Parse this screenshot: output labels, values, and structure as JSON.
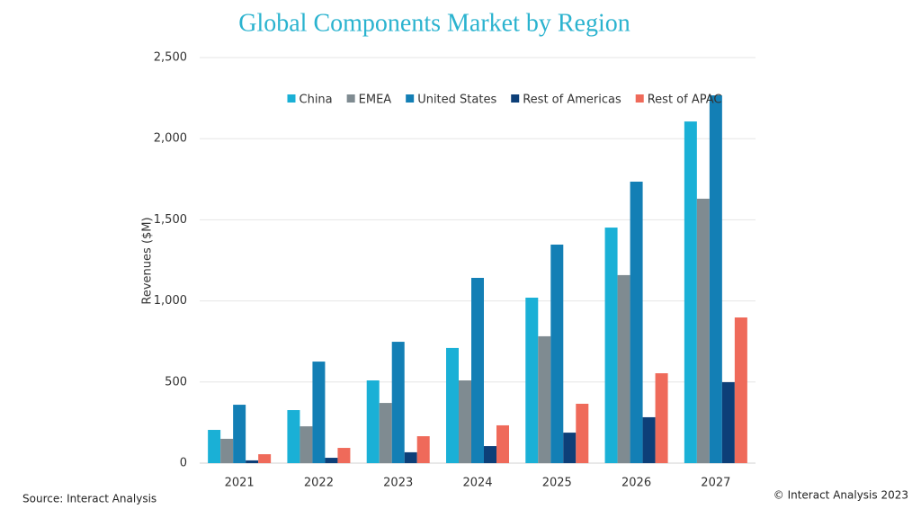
{
  "chart_data": {
    "type": "bar",
    "title": "Global Components Market by Region",
    "y_label": "Revenues ($M)",
    "categories": [
      "2021",
      "2022",
      "2023",
      "2024",
      "2025",
      "2026",
      "2027"
    ],
    "series": [
      {
        "name": "China",
        "color": "#1ab0d6",
        "values": [
          205,
          327,
          510,
          710,
          1020,
          1452,
          2106
        ]
      },
      {
        "name": "EMEA",
        "color": "#7f8b91",
        "values": [
          150,
          227,
          371,
          510,
          782,
          1159,
          1630
        ]
      },
      {
        "name": "United States",
        "color": "#137fb5",
        "values": [
          360,
          626,
          748,
          1142,
          1347,
          1735,
          2267
        ]
      },
      {
        "name": "Rest of Americas",
        "color": "#0d3f78",
        "values": [
          17,
          33,
          67,
          105,
          188,
          283,
          499
        ]
      },
      {
        "name": "Rest of APAC",
        "color": "#ef6a5a",
        "values": [
          55,
          94,
          166,
          233,
          366,
          554,
          898
        ]
      }
    ],
    "ylim": [
      0,
      2500
    ],
    "yticks": [
      0,
      500,
      {
        "value": 1000,
        "label": "1,000"
      },
      {
        "value": 1500,
        "label": "1,500"
      },
      {
        "value": 2000,
        "label": "2,000"
      },
      {
        "value": 2500,
        "label": "2,500"
      }
    ],
    "grid": true,
    "legend": "top",
    "source": "Source: Interact Analysis",
    "copyright": "© Interact Analysis 2023"
  }
}
